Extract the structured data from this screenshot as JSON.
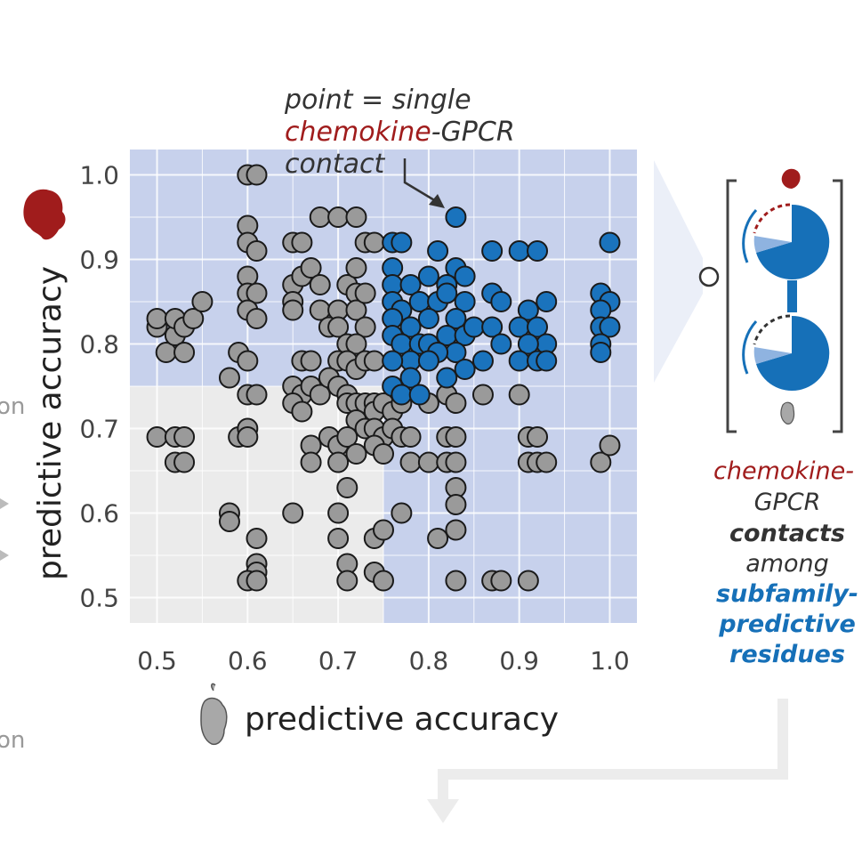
{
  "chart_data": {
    "type": "scatter",
    "xlabel": "predictive accuracy",
    "ylabel": "predictive accuracy",
    "xlim": [
      0.47,
      1.03
    ],
    "ylim": [
      0.47,
      1.03
    ],
    "x_ticks": [
      "0.5",
      "0.6",
      "0.7",
      "0.8",
      "0.9",
      "1.0"
    ],
    "y_ticks": [
      "0.5",
      "0.6",
      "0.7",
      "0.8",
      "0.9",
      "1.0"
    ],
    "grid": true,
    "highlight_threshold": 0.75,
    "colors": {
      "gray_point": "#9a9a9a",
      "highlight_point": "#1a73bd",
      "highlight_region": "#c5d0ec",
      "background": "#ebebeb",
      "chemokine": "#a01c1c",
      "blue_text": "#1670b8"
    },
    "points_gray": [
      [
        0.5,
        0.82
      ],
      [
        0.5,
        0.83
      ],
      [
        0.51,
        0.79
      ],
      [
        0.52,
        0.81
      ],
      [
        0.52,
        0.83
      ],
      [
        0.53,
        0.82
      ],
      [
        0.53,
        0.79
      ],
      [
        0.54,
        0.83
      ],
      [
        0.55,
        0.85
      ],
      [
        0.5,
        0.69
      ],
      [
        0.52,
        0.69
      ],
      [
        0.53,
        0.69
      ],
      [
        0.52,
        0.66
      ],
      [
        0.53,
        0.66
      ],
      [
        0.6,
        1.0
      ],
      [
        0.61,
        1.0
      ],
      [
        0.6,
        0.94
      ],
      [
        0.6,
        0.92
      ],
      [
        0.61,
        0.91
      ],
      [
        0.6,
        0.88
      ],
      [
        0.6,
        0.86
      ],
      [
        0.61,
        0.86
      ],
      [
        0.6,
        0.84
      ],
      [
        0.61,
        0.83
      ],
      [
        0.58,
        0.76
      ],
      [
        0.59,
        0.79
      ],
      [
        0.6,
        0.78
      ],
      [
        0.6,
        0.74
      ],
      [
        0.61,
        0.74
      ],
      [
        0.59,
        0.69
      ],
      [
        0.6,
        0.7
      ],
      [
        0.6,
        0.69
      ],
      [
        0.58,
        0.6
      ],
      [
        0.58,
        0.59
      ],
      [
        0.61,
        0.57
      ],
      [
        0.61,
        0.54
      ],
      [
        0.61,
        0.53
      ],
      [
        0.6,
        0.52
      ],
      [
        0.61,
        0.52
      ],
      [
        0.65,
        0.92
      ],
      [
        0.66,
        0.92
      ],
      [
        0.65,
        0.87
      ],
      [
        0.66,
        0.88
      ],
      [
        0.65,
        0.85
      ],
      [
        0.65,
        0.84
      ],
      [
        0.68,
        0.95
      ],
      [
        0.7,
        0.95
      ],
      [
        0.72,
        0.95
      ],
      [
        0.67,
        0.89
      ],
      [
        0.68,
        0.87
      ],
      [
        0.68,
        0.84
      ],
      [
        0.69,
        0.82
      ],
      [
        0.7,
        0.84
      ],
      [
        0.7,
        0.82
      ],
      [
        0.71,
        0.87
      ],
      [
        0.72,
        0.86
      ],
      [
        0.72,
        0.84
      ],
      [
        0.73,
        0.86
      ],
      [
        0.72,
        0.89
      ],
      [
        0.73,
        0.92
      ],
      [
        0.74,
        0.92
      ],
      [
        0.73,
        0.82
      ],
      [
        0.71,
        0.8
      ],
      [
        0.72,
        0.8
      ],
      [
        0.7,
        0.78
      ],
      [
        0.71,
        0.78
      ],
      [
        0.72,
        0.77
      ],
      [
        0.73,
        0.78
      ],
      [
        0.74,
        0.78
      ],
      [
        0.66,
        0.78
      ],
      [
        0.67,
        0.78
      ],
      [
        0.65,
        0.75
      ],
      [
        0.66,
        0.74
      ],
      [
        0.67,
        0.75
      ],
      [
        0.65,
        0.73
      ],
      [
        0.66,
        0.72
      ],
      [
        0.68,
        0.74
      ],
      [
        0.69,
        0.76
      ],
      [
        0.7,
        0.75
      ],
      [
        0.71,
        0.74
      ],
      [
        0.71,
        0.73
      ],
      [
        0.72,
        0.73
      ],
      [
        0.73,
        0.73
      ],
      [
        0.74,
        0.73
      ],
      [
        0.74,
        0.72
      ],
      [
        0.75,
        0.73
      ],
      [
        0.76,
        0.72
      ],
      [
        0.77,
        0.73
      ],
      [
        0.72,
        0.71
      ],
      [
        0.73,
        0.7
      ],
      [
        0.74,
        0.7
      ],
      [
        0.75,
        0.69
      ],
      [
        0.76,
        0.7
      ],
      [
        0.77,
        0.69
      ],
      [
        0.67,
        0.68
      ],
      [
        0.67,
        0.66
      ],
      [
        0.69,
        0.69
      ],
      [
        0.7,
        0.68
      ],
      [
        0.7,
        0.66
      ],
      [
        0.71,
        0.69
      ],
      [
        0.72,
        0.67
      ],
      [
        0.74,
        0.68
      ],
      [
        0.75,
        0.67
      ],
      [
        0.78,
        0.69
      ],
      [
        0.78,
        0.66
      ],
      [
        0.8,
        0.73
      ],
      [
        0.8,
        0.66
      ],
      [
        0.82,
        0.74
      ],
      [
        0.83,
        0.73
      ],
      [
        0.82,
        0.69
      ],
      [
        0.83,
        0.69
      ],
      [
        0.82,
        0.66
      ],
      [
        0.83,
        0.66
      ],
      [
        0.65,
        0.6
      ],
      [
        0.7,
        0.6
      ],
      [
        0.71,
        0.63
      ],
      [
        0.7,
        0.57
      ],
      [
        0.74,
        0.57
      ],
      [
        0.75,
        0.58
      ],
      [
        0.77,
        0.6
      ],
      [
        0.81,
        0.57
      ],
      [
        0.83,
        0.63
      ],
      [
        0.83,
        0.61
      ],
      [
        0.83,
        0.58
      ],
      [
        0.71,
        0.54
      ],
      [
        0.71,
        0.52
      ],
      [
        0.74,
        0.53
      ],
      [
        0.75,
        0.52
      ],
      [
        0.83,
        0.52
      ],
      [
        0.87,
        0.52
      ],
      [
        0.88,
        0.52
      ],
      [
        0.91,
        0.52
      ],
      [
        0.86,
        0.74
      ],
      [
        0.9,
        0.74
      ],
      [
        0.91,
        0.69
      ],
      [
        0.92,
        0.69
      ],
      [
        0.91,
        0.66
      ],
      [
        0.92,
        0.66
      ],
      [
        0.93,
        0.66
      ],
      [
        0.99,
        0.66
      ],
      [
        1.0,
        0.68
      ]
    ],
    "points_blue": [
      [
        0.83,
        0.95
      ],
      [
        0.76,
        0.92
      ],
      [
        0.77,
        0.92
      ],
      [
        0.81,
        0.91
      ],
      [
        0.87,
        0.91
      ],
      [
        0.9,
        0.91
      ],
      [
        0.92,
        0.91
      ],
      [
        1.0,
        0.92
      ],
      [
        0.76,
        0.89
      ],
      [
        0.76,
        0.87
      ],
      [
        0.78,
        0.87
      ],
      [
        0.8,
        0.88
      ],
      [
        0.83,
        0.89
      ],
      [
        0.84,
        0.88
      ],
      [
        0.82,
        0.87
      ],
      [
        0.76,
        0.85
      ],
      [
        0.77,
        0.84
      ],
      [
        0.79,
        0.85
      ],
      [
        0.81,
        0.85
      ],
      [
        0.82,
        0.86
      ],
      [
        0.84,
        0.85
      ],
      [
        0.83,
        0.83
      ],
      [
        0.8,
        0.83
      ],
      [
        0.78,
        0.82
      ],
      [
        0.76,
        0.83
      ],
      [
        0.76,
        0.81
      ],
      [
        0.77,
        0.8
      ],
      [
        0.79,
        0.8
      ],
      [
        0.8,
        0.8
      ],
      [
        0.82,
        0.81
      ],
      [
        0.84,
        0.81
      ],
      [
        0.85,
        0.82
      ],
      [
        0.83,
        0.79
      ],
      [
        0.81,
        0.79
      ],
      [
        0.78,
        0.78
      ],
      [
        0.76,
        0.78
      ],
      [
        0.87,
        0.86
      ],
      [
        0.88,
        0.85
      ],
      [
        0.87,
        0.82
      ],
      [
        0.88,
        0.8
      ],
      [
        0.86,
        0.78
      ],
      [
        0.84,
        0.77
      ],
      [
        0.8,
        0.78
      ],
      [
        0.82,
        0.76
      ],
      [
        0.78,
        0.76
      ],
      [
        0.76,
        0.75
      ],
      [
        0.77,
        0.74
      ],
      [
        0.79,
        0.74
      ],
      [
        0.91,
        0.84
      ],
      [
        0.93,
        0.85
      ],
      [
        0.9,
        0.82
      ],
      [
        0.92,
        0.82
      ],
      [
        0.93,
        0.8
      ],
      [
        0.91,
        0.8
      ],
      [
        0.9,
        0.78
      ],
      [
        0.92,
        0.78
      ],
      [
        0.93,
        0.78
      ],
      [
        0.99,
        0.86
      ],
      [
        1.0,
        0.85
      ],
      [
        0.99,
        0.84
      ],
      [
        0.99,
        0.82
      ],
      [
        1.0,
        0.82
      ],
      [
        0.99,
        0.8
      ],
      [
        0.99,
        0.79
      ]
    ]
  },
  "annotation": {
    "line1": "point = single",
    "word_chemokine": "chemokine",
    "line2_rest": "-GPCR",
    "line3": "contact"
  },
  "side_label": {
    "chemokine": "chemokine-",
    "gpcr": "GPCR",
    "contacts": "contacts",
    "among": "among",
    "subfamily": "subfamily-",
    "predictive": "predictive",
    "residues": "residues"
  },
  "edge_text": {
    "upper": "on",
    "lower": "on"
  }
}
